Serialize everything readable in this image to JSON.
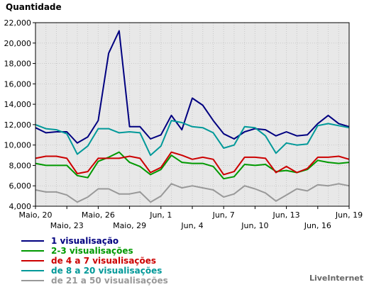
{
  "chart_data": {
    "type": "line",
    "ylabel": "Quantidade",
    "ylim": [
      4000,
      22000
    ],
    "yticks": [
      4000,
      6000,
      8000,
      10000,
      12000,
      14000,
      16000,
      18000,
      20000,
      22000
    ],
    "ytick_labels": [
      "4,000",
      "6,000",
      "8,000",
      "10,000",
      "12,000",
      "14,000",
      "16,000",
      "18,000",
      "20,000",
      "22,000"
    ],
    "x": [
      "2013-05-20",
      "2013-05-21",
      "2013-05-22",
      "2013-05-23",
      "2013-05-24",
      "2013-05-25",
      "2013-05-26",
      "2013-05-27",
      "2013-05-28",
      "2013-05-29",
      "2013-05-30",
      "2013-05-31",
      "2013-06-01",
      "2013-06-02",
      "2013-06-03",
      "2013-06-04",
      "2013-06-05",
      "2013-06-06",
      "2013-06-07",
      "2013-06-08",
      "2013-06-09",
      "2013-06-10",
      "2013-06-11",
      "2013-06-12",
      "2013-06-13",
      "2013-06-14",
      "2013-06-15",
      "2013-06-16",
      "2013-06-17",
      "2013-06-18",
      "2013-06-19"
    ],
    "xtick_labels_top": [
      {
        "x": "2013-05-20",
        "label": "Maio, 20"
      },
      {
        "x": "2013-05-26",
        "label": "Maio, 26"
      },
      {
        "x": "2013-06-01",
        "label": "Jun, 1"
      },
      {
        "x": "2013-06-07",
        "label": "Jun, 7"
      },
      {
        "x": "2013-06-13",
        "label": "Jun, 13"
      },
      {
        "x": "2013-06-19",
        "label": "Jun, 19"
      }
    ],
    "xtick_labels_bottom": [
      {
        "x": "2013-05-23",
        "label": "Maio, 23"
      },
      {
        "x": "2013-05-29",
        "label": "Maio, 29"
      },
      {
        "x": "2013-06-04",
        "label": "Jun, 4"
      },
      {
        "x": "2013-06-10",
        "label": "Jun, 10"
      },
      {
        "x": "2013-06-16",
        "label": "Jun, 16"
      }
    ],
    "grid": true,
    "legend_placement": "bottom-left",
    "series": [
      {
        "name": "1 visualisação",
        "color": "#000080",
        "values": [
          11700,
          11200,
          11300,
          11300,
          10200,
          10800,
          12400,
          19000,
          21200,
          11800,
          11800,
          10600,
          11000,
          12900,
          11500,
          14600,
          13900,
          12400,
          11100,
          10600,
          11300,
          11600,
          11500,
          10900,
          11300,
          10900,
          11000,
          12100,
          12900,
          12100,
          11800
        ]
      },
      {
        "name": "2-3 visualisações",
        "color": "#009900",
        "values": [
          8200,
          8000,
          8000,
          8000,
          7000,
          6800,
          8400,
          8800,
          9300,
          8300,
          7900,
          7100,
          7600,
          9000,
          8300,
          8200,
          8200,
          7900,
          6700,
          6900,
          8100,
          8000,
          8100,
          7400,
          7500,
          7300,
          7600,
          8500,
          8300,
          8200,
          8300
        ]
      },
      {
        "name": "de 4 a 7 visualisações",
        "color": "#cc0000",
        "values": [
          8700,
          8900,
          8900,
          8700,
          7200,
          7400,
          8700,
          8700,
          8700,
          8900,
          8700,
          7300,
          7800,
          9300,
          9000,
          8600,
          8800,
          8600,
          7100,
          7400,
          8800,
          8800,
          8700,
          7300,
          7900,
          7300,
          7700,
          8800,
          8800,
          8900,
          8600
        ]
      },
      {
        "name": "de 8 a 20 visualisações",
        "color": "#009999",
        "values": [
          12000,
          11600,
          11500,
          11100,
          9100,
          9900,
          11600,
          11600,
          11200,
          11300,
          11200,
          9000,
          9900,
          12400,
          12200,
          11800,
          11700,
          11200,
          9700,
          10000,
          11800,
          11700,
          10900,
          9200,
          10200,
          10000,
          10100,
          11900,
          12100,
          11900,
          11700
        ]
      },
      {
        "name": "de 21 a 50 visualisações",
        "color": "#999999",
        "values": [
          5600,
          5400,
          5400,
          5100,
          4400,
          4900,
          5700,
          5700,
          5200,
          5200,
          5400,
          4400,
          5000,
          6200,
          5800,
          6000,
          5800,
          5600,
          4900,
          5200,
          6000,
          5700,
          5300,
          4500,
          5100,
          5700,
          5500,
          6100,
          6000,
          6200,
          6000
        ]
      }
    ]
  },
  "brand": "LiveInternet"
}
